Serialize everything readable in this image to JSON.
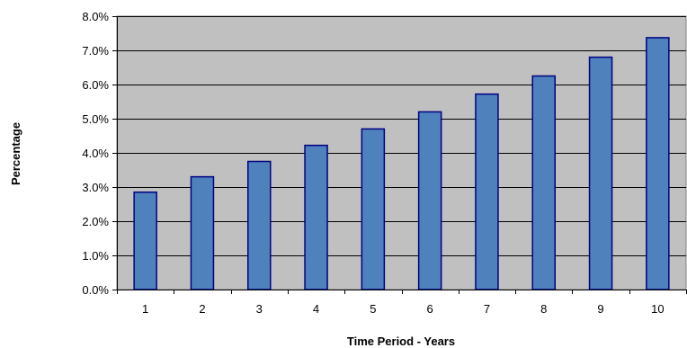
{
  "chart_data": {
    "type": "bar",
    "title": "",
    "xlabel": "Time Period - Years",
    "ylabel": "Percentage",
    "categories": [
      "1",
      "2",
      "3",
      "4",
      "5",
      "6",
      "7",
      "8",
      "9",
      "10"
    ],
    "values": [
      2.85,
      3.3,
      3.75,
      4.22,
      4.7,
      5.2,
      5.72,
      6.25,
      6.8,
      7.37
    ],
    "ylim": [
      0,
      8
    ],
    "yticks": [
      "0.0%",
      "1.0%",
      "2.0%",
      "3.0%",
      "4.0%",
      "5.0%",
      "6.0%",
      "7.0%",
      "8.0%"
    ],
    "grid": true,
    "legend": "none",
    "colors": {
      "plot_background": "#c0c0c0",
      "bar_fill": "#4f81bd",
      "bar_stroke": "#000080",
      "gridline": "#000000"
    }
  }
}
